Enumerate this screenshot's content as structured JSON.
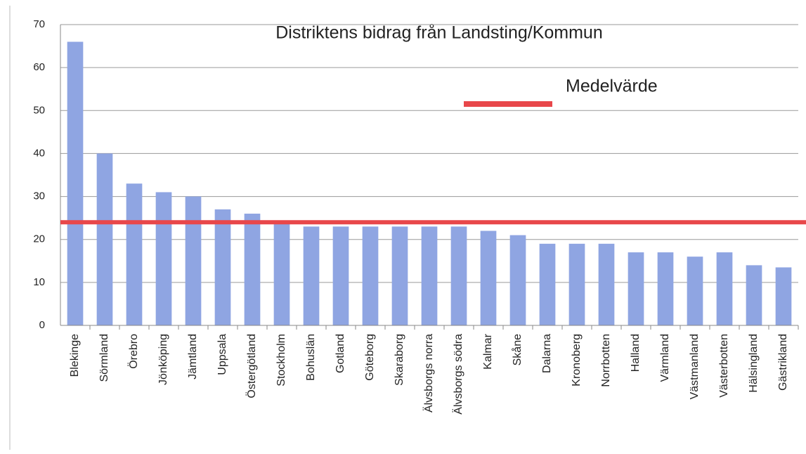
{
  "chart_data": {
    "type": "bar",
    "title": "Distriktens bidrag från Landsting/Kommun",
    "categories": [
      "Blekinge",
      "Sörmland",
      "Örebro",
      "Jönköping",
      "Jämtland",
      "Uppsala",
      "Östergötland",
      "Stockholm",
      "Bohuslän",
      "Gotland",
      "Göteborg",
      "Skaraborg",
      "Älvsborgs norra",
      "Älvsborgs södra",
      "Kalmar",
      "Skåne",
      "Dalarna",
      "Kronoberg",
      "Norrbotten",
      "Halland",
      "Värmland",
      "Västmanland",
      "Västerbotten",
      "Hälsingland",
      "Gästrikland"
    ],
    "values": [
      66,
      40,
      33,
      31,
      30,
      27,
      26,
      24,
      23,
      23,
      23,
      23,
      23,
      23,
      22,
      21,
      19,
      19,
      19,
      17,
      17,
      16,
      17,
      14,
      13.5
    ],
    "color": "#8fa5e2",
    "reference_line": {
      "name": "Medelvärde",
      "value": 24,
      "color": "#e8474a"
    },
    "ylim": [
      0,
      70
    ],
    "yticks": [
      0,
      10,
      20,
      30,
      40,
      50,
      60,
      70
    ],
    "grid": true
  }
}
